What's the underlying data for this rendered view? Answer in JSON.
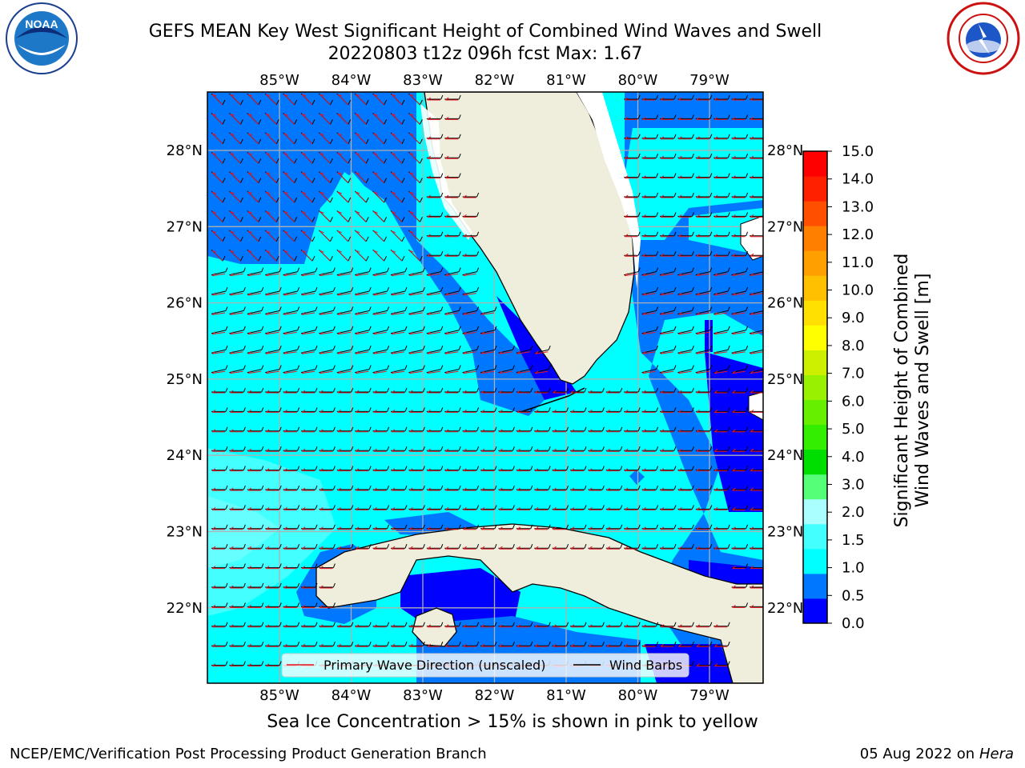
{
  "header": {
    "title_line1": "GEFS MEAN Key West Significant Height of Combined Wind Waves and Swell",
    "title_line2": "20220803 t12z 096h fcst   Max: 1.67"
  },
  "logos": {
    "left": {
      "name": "noaa-logo",
      "text": "NOAA",
      "ring_text": "NATIONAL OCEANIC AND ATMOSPHERIC ADMINISTRATION · U.S. DEPARTMENT OF COMMERCE"
    },
    "right": {
      "name": "nws-logo",
      "ring_text": "NATIONAL WEATHER SERVICE"
    }
  },
  "map": {
    "lon_labels": [
      "85°W",
      "84°W",
      "83°W",
      "82°W",
      "81°W",
      "80°W",
      "79°W"
    ],
    "lat_labels": [
      "28°N",
      "27°N",
      "26°N",
      "25°N",
      "24°N",
      "23°N",
      "22°N"
    ],
    "legend": {
      "items": [
        {
          "label": "Primary Wave Direction (unscaled)",
          "color": "#e8141c"
        },
        {
          "label": "Wind Barbs",
          "color": "#000000"
        }
      ]
    },
    "colors": {
      "land": "#efeddc",
      "c_0_0_5": "#0000ff",
      "c_0_5_1_0": "#0077ff",
      "c_1_0_1_5": "#00ffff",
      "c_1_5_2_0": "#44ffff",
      "c_2_0_3_0": "#aaffff"
    }
  },
  "colorbar": {
    "title": "Significant Height of Combined Wind Waves and Swell [m]",
    "ticks": [
      "15.0",
      "14.0",
      "13.0",
      "12.0",
      "11.0",
      "10.0",
      "9.0",
      "8.0",
      "7.0",
      "6.0",
      "5.0",
      "4.0",
      "3.0",
      "2.0",
      "1.5",
      "1.0",
      "0.5",
      "0.0"
    ],
    "colors": [
      "#0000ff",
      "#0077ff",
      "#00ffff",
      "#44ffff",
      "#aaffff",
      "#55ff77",
      "#00dd00",
      "#33ee00",
      "#66f000",
      "#99f000",
      "#ccf000",
      "#ffff00",
      "#ffe000",
      "#ffc000",
      "#ffa000",
      "#ff8000",
      "#ff5000",
      "#ff2000",
      "#ff0000"
    ]
  },
  "footer": {
    "subtitle": "Sea Ice Concentration > 15% is shown in pink to yellow",
    "left": "NCEP/EMC/Verification Post Processing Product Generation Branch",
    "right_date": "05 Aug 2022 on",
    "right_host": "Hera"
  }
}
